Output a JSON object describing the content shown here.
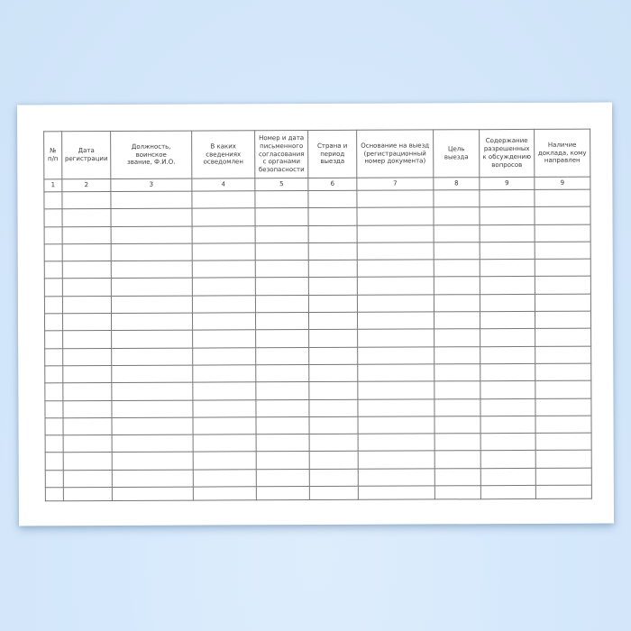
{
  "colors": {
    "background": "#d6e9fc",
    "paper": "#ffffff",
    "table_border": "#777777",
    "text": "#3a3a3a"
  },
  "table": {
    "columns": [
      {
        "title": "№\nп/п",
        "number": "1"
      },
      {
        "title": "Дата\nрегистрации",
        "number": "2"
      },
      {
        "title": "Должность,\nвоинское\nзвание, Ф.И.О.",
        "number": "3"
      },
      {
        "title": "В каких\nсведениях\nосведомлен",
        "number": "4"
      },
      {
        "title": "Номер и дата\nписьменного\nсогласования\nс органами\nбезопасности",
        "number": "5"
      },
      {
        "title": "Страна и\nпериод\nвыезда",
        "number": "6"
      },
      {
        "title": "Основание на выезд\n(регистрационный\nномер документа)",
        "number": "7"
      },
      {
        "title": "Цель\nвыезда",
        "number": "8"
      },
      {
        "title": "Содержание\nразрешенных\nк обсуждению\nвопросов",
        "number": "9"
      },
      {
        "title": "Наличие\nдоклада, кому\nнаправлен",
        "number": "9"
      }
    ],
    "empty_row_count": 18
  }
}
